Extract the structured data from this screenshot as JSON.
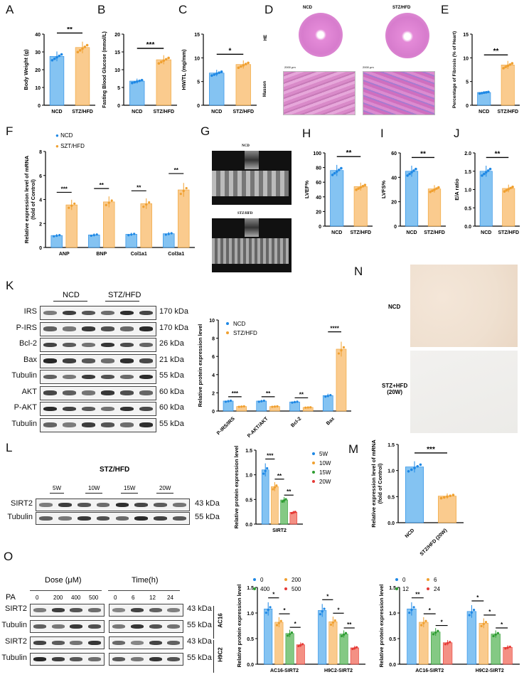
{
  "panels": [
    "A",
    "B",
    "C",
    "D",
    "E",
    "F",
    "G",
    "H",
    "I",
    "J",
    "K",
    "L",
    "M",
    "N",
    "O"
  ],
  "colors": {
    "ncd": "#6FB8F0",
    "ncd_dot": "#1E88E5",
    "stz": "#F9C27A",
    "stz_dot": "#F0A030",
    "w15": "#6FBF6F",
    "w15_dot": "#2E9D32",
    "w20": "#F27C6E",
    "w20_dot": "#E53935"
  },
  "d": {
    "ncd_label": "NCD",
    "stz_label": "STZ/HFD",
    "he": "HE",
    "masson": "Masson",
    "scale": "2000 μm"
  },
  "g": {
    "ncd_label": "NCD",
    "stz_label": "STZ/HFD"
  },
  "k": {
    "groups": [
      "NCD",
      "STZ/HFD"
    ],
    "rows": [
      {
        "name": "IRS",
        "kda": "170 kDa"
      },
      {
        "name": "P-IRS",
        "kda": "170 kDa"
      },
      {
        "name": "Bcl-2",
        "kda": "26 kDa"
      },
      {
        "name": "Bax",
        "kda": "21 kDa"
      },
      {
        "name": "Tubulin",
        "kda": "55 kDa"
      },
      {
        "name": "AKT",
        "kda": "60 kDa"
      },
      {
        "name": "P-AKT",
        "kda": "60 kDa"
      },
      {
        "name": "Tubulin",
        "kda": "55 kDa"
      }
    ]
  },
  "l": {
    "title": "STZ/HFD",
    "times": [
      "5W",
      "10W",
      "15W",
      "20W"
    ],
    "rows": [
      {
        "name": "SIRT2",
        "kda": "43 kDa"
      },
      {
        "name": "Tubulin",
        "kda": "55 kDa"
      }
    ]
  },
  "n": {
    "ncd": "NCD",
    "stz": "STZ+HFD",
    "stz2": "(20W)"
  },
  "o": {
    "dose_title": "Dose (μM)",
    "time_title": "Time(h)",
    "pa": "PA",
    "doses": [
      "0",
      "200",
      "400",
      "500"
    ],
    "times": [
      "0",
      "6",
      "12",
      "24"
    ],
    "rows": [
      {
        "name": "SIRT2",
        "kda": "43 kDa"
      },
      {
        "name": "Tubulin",
        "kda": "55 kDa"
      },
      {
        "name": "SIRT2",
        "kda": "43 kDa"
      },
      {
        "name": "Tubulin",
        "kda": "55 kDa"
      }
    ],
    "cells": [
      "AC16",
      "H9C2"
    ]
  },
  "chart_data": [
    {
      "panel": "A",
      "type": "bar",
      "categories": [
        "NCD",
        "STZ/HFD"
      ],
      "values": [
        27.5,
        32.5
      ],
      "ylabel": "Body Weight (g)",
      "ylim": [
        0,
        40
      ],
      "yticks": [
        0,
        10,
        20,
        30,
        40
      ],
      "significance": "**"
    },
    {
      "panel": "B",
      "type": "bar",
      "categories": [
        "NCD",
        "STZ/HFD"
      ],
      "values": [
        6.8,
        12.8
      ],
      "ylabel": "Fasting Blood Glucose (mmol/L)",
      "ylim": [
        0,
        20
      ],
      "yticks": [
        0,
        5,
        10,
        15,
        20
      ],
      "significance": "***"
    },
    {
      "panel": "C",
      "type": "bar",
      "categories": [
        "NCD",
        "STZ/HFD"
      ],
      "values": [
        6.8,
        8.6
      ],
      "ylabel": "HW/TL (mg/mm)",
      "ylim": [
        0,
        15
      ],
      "yticks": [
        0,
        5,
        10,
        15
      ],
      "significance": "*"
    },
    {
      "panel": "E",
      "type": "bar",
      "categories": [
        "NCD",
        "STZ/HFD"
      ],
      "values": [
        2.7,
        8.5
      ],
      "ylabel": "Percentage of Fibrosis (% of Heart)",
      "ylim": [
        0,
        15
      ],
      "yticks": [
        0,
        5,
        10,
        15
      ],
      "significance": "**"
    },
    {
      "panel": "F",
      "type": "bar",
      "categories": [
        "ANP",
        "BNP",
        "Col1a1",
        "Col3a1"
      ],
      "series": [
        {
          "name": "NCD",
          "values": [
            1.0,
            1.05,
            1.1,
            1.15
          ]
        },
        {
          "name": "SZT/HFD",
          "values": [
            3.55,
            3.8,
            3.65,
            4.8
          ]
        }
      ],
      "ylabel": "Relative expression level of mRNA (fold of Control)",
      "ylim": [
        0,
        8
      ],
      "yticks": [
        0,
        2,
        4,
        6,
        8
      ],
      "significance": [
        "***",
        "**",
        "**",
        "**"
      ],
      "legend": [
        "NCD",
        "SZT/HFD"
      ]
    },
    {
      "panel": "H",
      "type": "bar",
      "categories": [
        "NCD",
        "STZ/HFD"
      ],
      "values": [
        76,
        54
      ],
      "ylabel": "LVEF%",
      "ylim": [
        0,
        100
      ],
      "yticks": [
        0,
        20,
        40,
        60,
        80,
        100
      ],
      "significance": "**"
    },
    {
      "panel": "I",
      "type": "bar",
      "categories": [
        "NCD",
        "STZ/HFD"
      ],
      "values": [
        45,
        30.5
      ],
      "ylabel": "LVFS%",
      "ylim": [
        0,
        60
      ],
      "yticks": [
        0,
        20,
        40,
        60
      ],
      "significance": "**"
    },
    {
      "panel": "J",
      "type": "bar",
      "categories": [
        "NCD",
        "STZ/HFD"
      ],
      "values": [
        1.5,
        1.03
      ],
      "ylabel": "E/A ratio",
      "ylim": [
        0,
        2.0
      ],
      "yticks": [
        "0.0",
        "0.5",
        "1.0",
        "1.5",
        "2.0"
      ],
      "significance": "**"
    },
    {
      "panel": "K",
      "type": "bar",
      "categories": [
        "P-IRS/IRS",
        "P-AKT/AKT",
        "Bcl-2",
        "Bax"
      ],
      "series": [
        {
          "name": "NCD",
          "values": [
            1.1,
            1.1,
            1.0,
            1.7
          ]
        },
        {
          "name": "STZ/HFD",
          "values": [
            0.5,
            0.5,
            0.4,
            6.8
          ]
        }
      ],
      "ylabel": "Relative protein expression level",
      "ylim": [
        0,
        10
      ],
      "yticks": [
        0,
        2,
        4,
        6,
        8,
        10
      ],
      "significance": [
        "***",
        "**",
        "**",
        "****"
      ],
      "legend": [
        "NCD",
        "STZ/HFD"
      ]
    },
    {
      "panel": "L",
      "type": "bar",
      "categories": [
        "SIRT2"
      ],
      "series": [
        {
          "name": "5W",
          "values": [
            1.1
          ]
        },
        {
          "name": "10W",
          "values": [
            0.76
          ]
        },
        {
          "name": "15W",
          "values": [
            0.49
          ]
        },
        {
          "name": "20W",
          "values": [
            0.24
          ]
        }
      ],
      "ylabel": "Relative protein expression level",
      "ylim": [
        0,
        1.5
      ],
      "yticks": [
        "0.0",
        "0.5",
        "1.0",
        "1.5"
      ],
      "significance": [
        "***",
        "**",
        "**"
      ],
      "legend": [
        "5W",
        "10W",
        "15W",
        "20W"
      ]
    },
    {
      "panel": "M",
      "type": "bar",
      "categories": [
        "NCD",
        "STZ/HFD (20W)"
      ],
      "values": [
        1.07,
        0.51
      ],
      "ylabel": "Relative expression level of mRNA (fold of Control)",
      "ylim": [
        0,
        1.5
      ],
      "yticks": [
        "0.0",
        "0.5",
        "1.0",
        "1.5"
      ],
      "significance": "***"
    },
    {
      "panel": "O-dose",
      "type": "bar",
      "categories": [
        "AC16-SIRT2",
        "H9C2-SIRT2"
      ],
      "series": [
        {
          "name": "0",
          "values": [
            1.08,
            1.05
          ]
        },
        {
          "name": "200",
          "values": [
            0.82,
            0.83
          ]
        },
        {
          "name": "400",
          "values": [
            0.6,
            0.59
          ]
        },
        {
          "name": "500",
          "values": [
            0.38,
            0.32
          ]
        }
      ],
      "ylabel": "Relative protein expression level",
      "ylim": [
        0,
        1.5
      ],
      "yticks": [
        "0.0",
        "0.5",
        "1.0",
        "1.5"
      ],
      "significance": [
        [
          "*",
          "*",
          "*"
        ],
        [
          "*",
          "*",
          "**"
        ]
      ],
      "legend": [
        "0",
        "200",
        "400",
        "500"
      ]
    },
    {
      "panel": "O-time",
      "type": "bar",
      "categories": [
        "AC16-SIRT2",
        "H9C2-SIRT2"
      ],
      "series": [
        {
          "name": "0",
          "values": [
            1.08,
            1.03
          ]
        },
        {
          "name": "6",
          "values": [
            0.82,
            0.8
          ]
        },
        {
          "name": "12",
          "values": [
            0.63,
            0.59
          ]
        },
        {
          "name": "24",
          "values": [
            0.42,
            0.33
          ]
        }
      ],
      "ylabel": "Relative protein expression level",
      "ylim": [
        0,
        1.5
      ],
      "yticks": [
        "0.0",
        "0.5",
        "1.0",
        "1.5"
      ],
      "significance": [
        [
          "**",
          "*",
          "*"
        ],
        [
          "*",
          "*",
          "*"
        ]
      ],
      "legend": [
        "0",
        "6",
        "12",
        "24"
      ]
    }
  ]
}
